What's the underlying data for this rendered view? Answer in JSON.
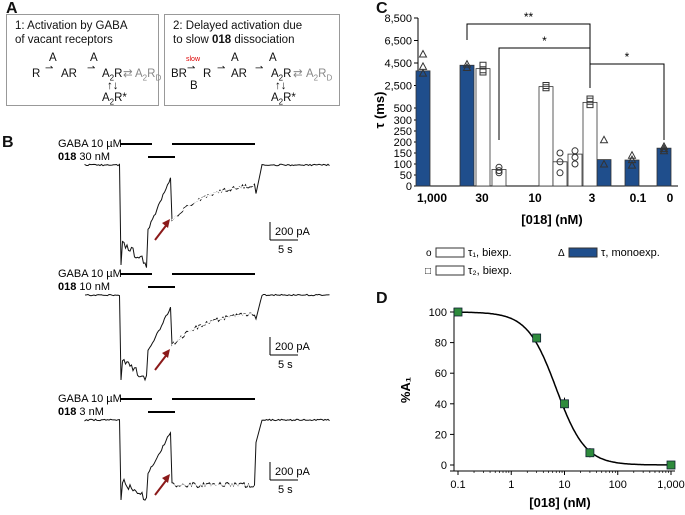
{
  "panels": {
    "a": "A",
    "b": "B",
    "c": "C",
    "d": "D"
  },
  "panelA": {
    "box1_line1": "1: Activation by GABA",
    "box1_line2": "of vacant receptors",
    "box2_line1": "2: Delayed activation due",
    "box2_line2_pre": "to slow ",
    "box2_line2_bold": "018",
    "box2_line2_post": " dissociation",
    "A": "A",
    "R": "R",
    "AR": "AR",
    "A2R": "A",
    "sub2": "2",
    "A2RD_sub": "D",
    "A2Rstar": "R*",
    "BR": "BR",
    "B": "B",
    "slow": "slow",
    "eq": "⇄",
    "updown": "↑↓"
  },
  "panelB": {
    "traces": [
      {
        "gaba": "GABA 10 µM",
        "drug": "018",
        "conc": "30 nM",
        "scale_i": "200 pA",
        "scale_t": "5 s"
      },
      {
        "gaba": "GABA 10 µM",
        "drug": "018",
        "conc": "10 nM",
        "scale_i": "200 pA",
        "scale_t": "5 s"
      },
      {
        "gaba": "GABA 10 µM",
        "drug": "018",
        "conc": "3 nM",
        "scale_i": "200 pA",
        "scale_t": "5 s"
      }
    ]
  },
  "legendC": {
    "tau1": "τ₁, biexp.",
    "tau2": "τ₂, biexp.",
    "taumono": "τ, monoexp.",
    "sym_o": "o",
    "sym_sq": "□",
    "sym_tri": "Δ"
  },
  "chart_data": [
    {
      "type": "bar",
      "title": "",
      "ylabel": "τ (ms)",
      "xlabel": "[018] (nM)",
      "categories": [
        "1,000",
        "30",
        "10",
        "3",
        "0.1",
        "0"
      ],
      "yticks_upper": [
        "8,500",
        "6,500",
        "4,500",
        "2,500",
        "500"
      ],
      "yticks_lower": [
        "300",
        "250",
        "200",
        "150",
        "100",
        "50",
        "0"
      ],
      "series": [
        {
          "name": "τ, monoexp.",
          "values": [
            {
              "cat": "1,000",
              "v": 3800
            },
            {
              "cat": "30",
              "v": 4300
            },
            {
              "cat": "3",
              "v": 120
            },
            {
              "cat": "0.1",
              "v": 118
            },
            {
              "cat": "0",
              "v": 172
            }
          ]
        },
        {
          "name": "τ₂, biexp.",
          "values": [
            {
              "cat": "30",
              "v": 4000
            },
            {
              "cat": "10",
              "v": 2400
            },
            {
              "cat": "3",
              "v": 1000
            }
          ]
        },
        {
          "name": "τ₁, biexp.",
          "values": [
            {
              "cat": "30",
              "v": 75
            },
            {
              "cat": "10",
              "v": 110
            },
            {
              "cat": "3",
              "v": 145
            }
          ]
        }
      ],
      "significance": [
        "**",
        "*",
        "*"
      ]
    },
    {
      "type": "scatter",
      "ylabel": "%A₁",
      "xlabel": "[018] (nM)",
      "xscale": "log",
      "xticks": [
        "0.1",
        "1",
        "10",
        "100",
        "1,000"
      ],
      "yticks": [
        "0",
        "20",
        "40",
        "60",
        "80",
        "100"
      ],
      "x": [
        0.1,
        3,
        10,
        30,
        1000
      ],
      "y": [
        100,
        83,
        40,
        8,
        0
      ],
      "fit": {
        "model": "sigmoid",
        "ic50_nM": 7,
        "hill": 1.6
      }
    }
  ]
}
